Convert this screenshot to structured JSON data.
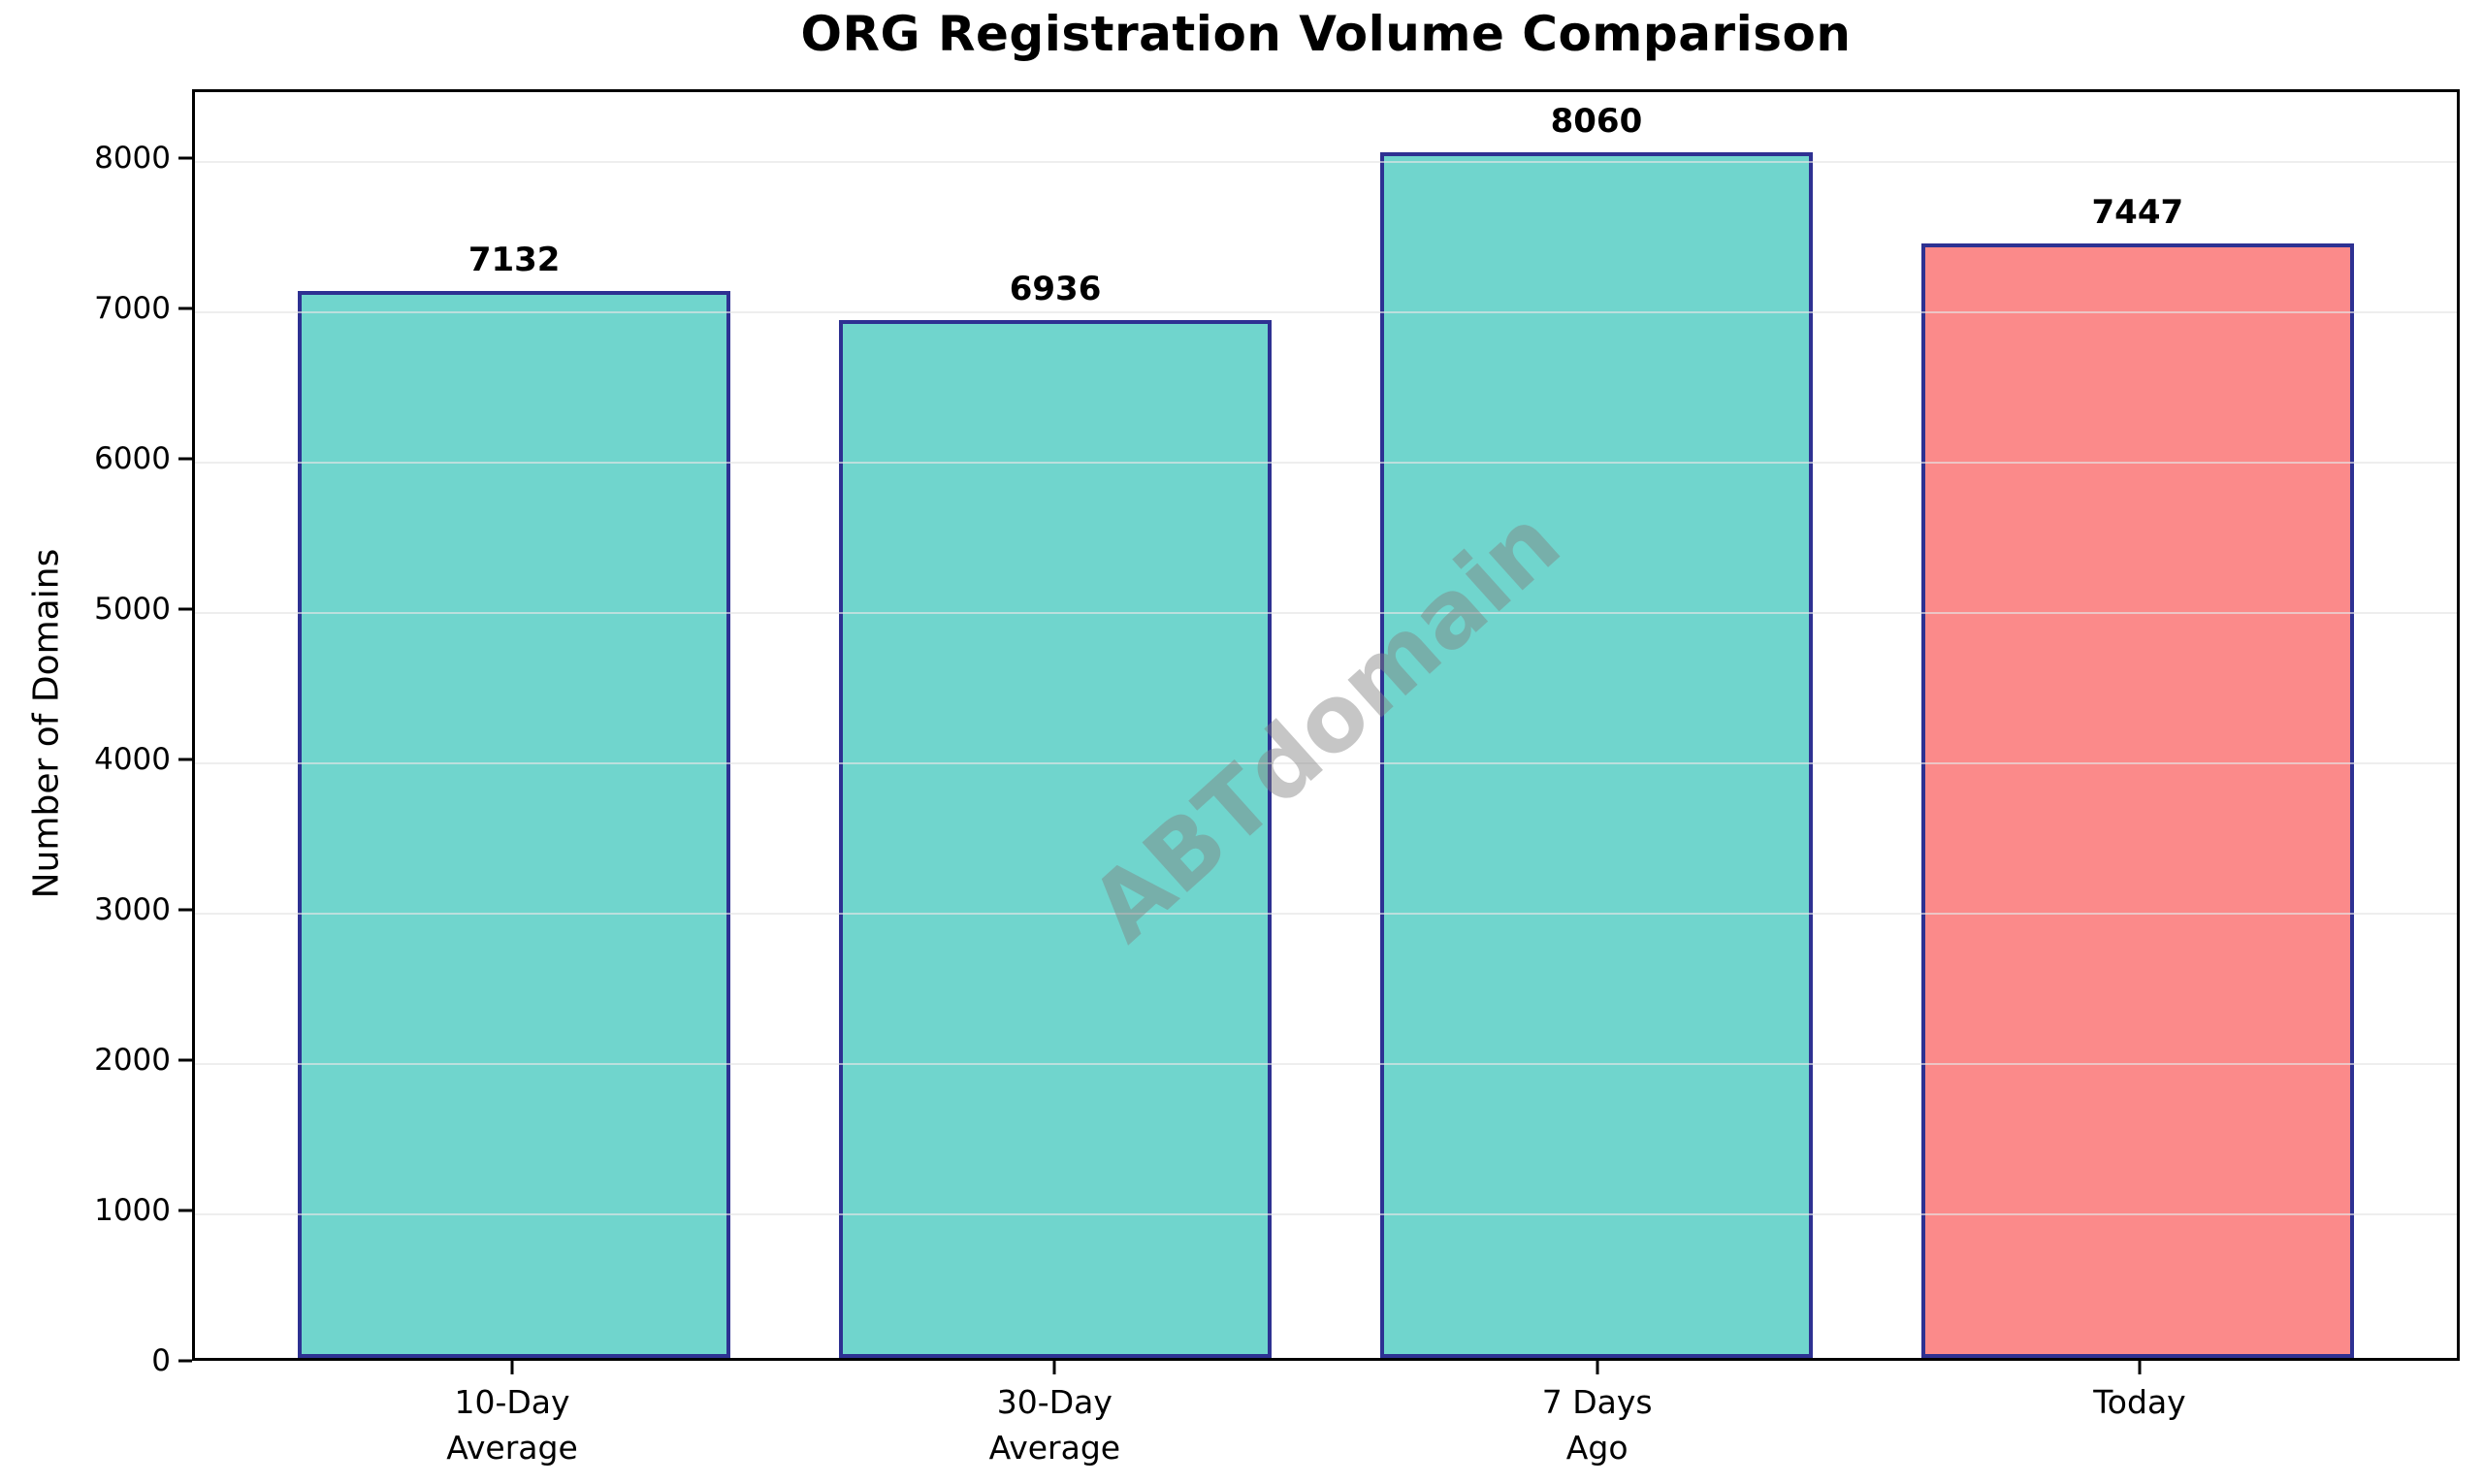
{
  "chart_data": {
    "type": "bar",
    "title": "ORG Registration Volume Comparison",
    "ylabel": "Number of Domains",
    "xlabel": "",
    "categories": [
      "10-Day\nAverage",
      "30-Day\nAverage",
      "7 Days\nAgo",
      "Today"
    ],
    "values": [
      7132,
      6936,
      8060,
      7447
    ],
    "value_labels": [
      "7132",
      "6936",
      "8060",
      "7447"
    ],
    "bar_fill_colors": [
      "#70D5CD",
      "#70D5CD",
      "#70D5CD",
      "#FB8A8A"
    ],
    "bar_edge_color": "#2E3192",
    "ylim": [
      0,
      8460
    ],
    "yticks": [
      0,
      1000,
      2000,
      3000,
      4000,
      5000,
      6000,
      7000,
      8000
    ],
    "grid": "horizontal-major",
    "legend": "none",
    "watermark": "ABTdomain",
    "colors": {
      "teal_bar": "#70D5CD",
      "red_bar": "#FB8A8A",
      "bar_edge": "#2E3192",
      "gridline": "#E8E8E8",
      "spine": "#000000",
      "watermark_gray": "#808080"
    }
  }
}
